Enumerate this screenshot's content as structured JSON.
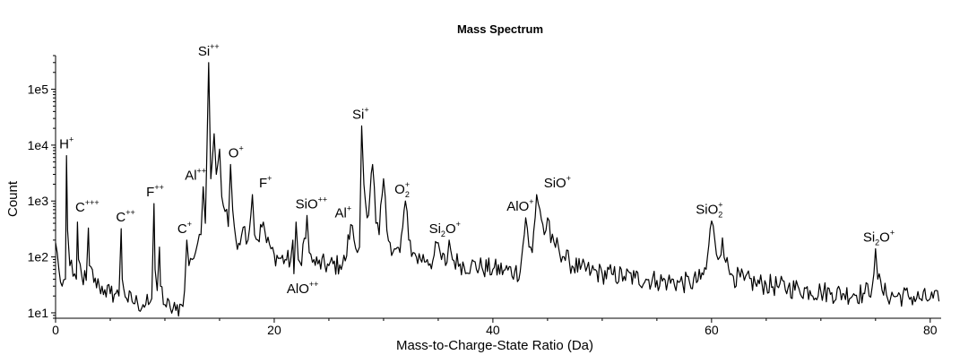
{
  "chart_data": {
    "type": "line",
    "title": "Mass Spectrum",
    "xlabel": "Mass-to-Charge-State Ratio (Da)",
    "ylabel": "Count",
    "xlim": [
      0,
      81
    ],
    "ylim": [
      8,
      400000
    ],
    "yscale": "log",
    "grid": false,
    "legend": "none",
    "line_color": "#000000",
    "x_ticks": [
      {
        "value": 0,
        "label": "0"
      },
      {
        "value": 20,
        "label": "20"
      },
      {
        "value": 40,
        "label": "40"
      },
      {
        "value": 60,
        "label": "60"
      },
      {
        "value": 80,
        "label": "80"
      }
    ],
    "y_ticks": [
      {
        "value": 10,
        "label": "1e1"
      },
      {
        "value": 100,
        "label": "1e2"
      },
      {
        "value": 1000,
        "label": "1e3"
      },
      {
        "value": 10000,
        "label": "1e4"
      },
      {
        "value": 100000,
        "label": "1e5"
      }
    ],
    "spectrum": [
      [
        0.0,
        180
      ],
      [
        0.3,
        60
      ],
      [
        0.6,
        30
      ],
      [
        0.9,
        40
      ],
      [
        1.0,
        6500
      ],
      [
        1.1,
        300
      ],
      [
        1.3,
        70
      ],
      [
        1.6,
        45
      ],
      [
        1.9,
        40
      ],
      [
        2.0,
        420
      ],
      [
        2.1,
        90
      ],
      [
        2.4,
        45
      ],
      [
        2.8,
        38
      ],
      [
        3.0,
        330
      ],
      [
        3.1,
        70
      ],
      [
        3.5,
        35
      ],
      [
        4.0,
        30
      ],
      [
        4.5,
        26
      ],
      [
        5.0,
        22
      ],
      [
        5.5,
        22
      ],
      [
        5.8,
        20
      ],
      [
        6.0,
        320
      ],
      [
        6.1,
        40
      ],
      [
        6.5,
        18
      ],
      [
        7.0,
        16
      ],
      [
        7.5,
        15
      ],
      [
        8.0,
        14
      ],
      [
        8.5,
        14
      ],
      [
        8.8,
        18
      ],
      [
        9.0,
        900
      ],
      [
        9.1,
        60
      ],
      [
        9.3,
        25
      ],
      [
        9.5,
        150
      ],
      [
        9.6,
        30
      ],
      [
        10.0,
        14
      ],
      [
        10.5,
        12
      ],
      [
        11.0,
        11
      ],
      [
        11.5,
        14
      ],
      [
        11.8,
        25
      ],
      [
        12.0,
        200
      ],
      [
        12.2,
        70
      ],
      [
        12.5,
        90
      ],
      [
        12.8,
        120
      ],
      [
        13.0,
        180
      ],
      [
        13.3,
        250
      ],
      [
        13.5,
        1800
      ],
      [
        13.7,
        400
      ],
      [
        14.0,
        300000
      ],
      [
        14.2,
        2500
      ],
      [
        14.5,
        16000
      ],
      [
        14.7,
        3000
      ],
      [
        15.0,
        8500
      ],
      [
        15.2,
        1200
      ],
      [
        15.5,
        650
      ],
      [
        15.8,
        350
      ],
      [
        16.0,
        4500
      ],
      [
        16.2,
        700
      ],
      [
        16.5,
        200
      ],
      [
        17.0,
        240
      ],
      [
        17.3,
        350
      ],
      [
        17.6,
        200
      ],
      [
        18.0,
        1300
      ],
      [
        18.2,
        250
      ],
      [
        18.5,
        200
      ],
      [
        19.0,
        420
      ],
      [
        19.3,
        180
      ],
      [
        19.7,
        140
      ],
      [
        20.0,
        110
      ],
      [
        20.5,
        95
      ],
      [
        21.0,
        90
      ],
      [
        21.5,
        85
      ],
      [
        21.7,
        200
      ],
      [
        21.8,
        50
      ],
      [
        22.0,
        420
      ],
      [
        22.2,
        90
      ],
      [
        22.5,
        70
      ],
      [
        23.0,
        550
      ],
      [
        23.2,
        120
      ],
      [
        23.5,
        80
      ],
      [
        24.0,
        75
      ],
      [
        25.0,
        70
      ],
      [
        26.0,
        72
      ],
      [
        26.5,
        85
      ],
      [
        27.0,
        380
      ],
      [
        27.3,
        200
      ],
      [
        27.6,
        120
      ],
      [
        27.8,
        150
      ],
      [
        28.0,
        22000
      ],
      [
        28.2,
        2000
      ],
      [
        28.5,
        500
      ],
      [
        29.0,
        4500
      ],
      [
        29.3,
        400
      ],
      [
        29.6,
        250
      ],
      [
        30.0,
        2500
      ],
      [
        30.3,
        300
      ],
      [
        30.6,
        180
      ],
      [
        31.0,
        140
      ],
      [
        31.5,
        120
      ],
      [
        32.0,
        1000
      ],
      [
        32.3,
        200
      ],
      [
        32.7,
        120
      ],
      [
        33.0,
        100
      ],
      [
        34.0,
        90
      ],
      [
        34.5,
        85
      ],
      [
        35.0,
        180
      ],
      [
        35.3,
        90
      ],
      [
        35.8,
        80
      ],
      [
        36.0,
        200
      ],
      [
        36.3,
        90
      ],
      [
        37.0,
        75
      ],
      [
        38.0,
        70
      ],
      [
        39.0,
        65
      ],
      [
        40.0,
        60
      ],
      [
        41.0,
        58
      ],
      [
        42.0,
        55
      ],
      [
        42.5,
        55
      ],
      [
        43.0,
        500
      ],
      [
        43.3,
        150
      ],
      [
        43.6,
        120
      ],
      [
        44.0,
        1300
      ],
      [
        44.3,
        700
      ],
      [
        44.7,
        250
      ],
      [
        45.0,
        500
      ],
      [
        45.3,
        180
      ],
      [
        46.0,
        150
      ],
      [
        46.5,
        100
      ],
      [
        47.0,
        80
      ],
      [
        48.0,
        60
      ],
      [
        49.0,
        55
      ],
      [
        50.0,
        50
      ],
      [
        51.0,
        48
      ],
      [
        52.0,
        45
      ],
      [
        53.0,
        42
      ],
      [
        54.0,
        40
      ],
      [
        55.0,
        38
      ],
      [
        56.0,
        36
      ],
      [
        57.0,
        35
      ],
      [
        58.0,
        34
      ],
      [
        59.0,
        40
      ],
      [
        59.5,
        60
      ],
      [
        60.0,
        440
      ],
      [
        60.3,
        200
      ],
      [
        60.6,
        90
      ],
      [
        61.0,
        220
      ],
      [
        61.3,
        80
      ],
      [
        61.8,
        50
      ],
      [
        62.0,
        45
      ],
      [
        63.0,
        38
      ],
      [
        64.0,
        34
      ],
      [
        65.0,
        32
      ],
      [
        66.0,
        30
      ],
      [
        67.0,
        28
      ],
      [
        68.0,
        27
      ],
      [
        69.0,
        25
      ],
      [
        70.0,
        24
      ],
      [
        71.0,
        23
      ],
      [
        72.0,
        22
      ],
      [
        73.0,
        22
      ],
      [
        74.0,
        22
      ],
      [
        74.7,
        30
      ],
      [
        75.0,
        140
      ],
      [
        75.2,
        40
      ],
      [
        75.6,
        25
      ],
      [
        76.0,
        21
      ],
      [
        77.0,
        20
      ],
      [
        78.0,
        20
      ],
      [
        79.0,
        18
      ],
      [
        80.0,
        18
      ],
      [
        80.8,
        16
      ]
    ],
    "annotations": [
      {
        "id": "h-plus",
        "base": "H",
        "sup": "+",
        "sub": "",
        "x": 1.0,
        "y": 6500
      },
      {
        "id": "c-3plus",
        "base": "C",
        "sup": "+++",
        "sub": "",
        "x": 2.9,
        "y": 480
      },
      {
        "id": "c-2plus",
        "base": "C",
        "sup": "++",
        "sub": "",
        "x": 6.4,
        "y": 320
      },
      {
        "id": "f-2plus",
        "base": "F",
        "sup": "++",
        "sub": "",
        "x": 9.1,
        "y": 900
      },
      {
        "id": "c-plus",
        "base": "C",
        "sup": "+",
        "sub": "",
        "x": 11.8,
        "y": 200
      },
      {
        "id": "al-2plus",
        "base": "Al",
        "sup": "++",
        "sub": "",
        "x": 12.8,
        "y": 1800
      },
      {
        "id": "si-2plus",
        "base": "Si",
        "sup": "++",
        "sub": "",
        "x": 14.0,
        "y": 300000
      },
      {
        "id": "o-plus",
        "base": "O",
        "sup": "+",
        "sub": "",
        "x": 16.5,
        "y": 4500
      },
      {
        "id": "f-plus",
        "base": "F",
        "sup": "+",
        "sub": "",
        "x": 19.2,
        "y": 1300
      },
      {
        "id": "sio-2plus",
        "base": "SiO",
        "sup": "++",
        "sub": "",
        "x": 23.4,
        "y": 550
      },
      {
        "id": "alo-2plus",
        "base": "AlO",
        "sup": "++",
        "sub": "",
        "x": 22.6,
        "y": 30
      },
      {
        "id": "al-plus",
        "base": "Al",
        "sup": "+",
        "sub": "",
        "x": 26.3,
        "y": 380
      },
      {
        "id": "si-plus",
        "base": "Si",
        "sup": "+",
        "sub": "",
        "x": 27.9,
        "y": 22000
      },
      {
        "id": "o2-plus",
        "base": "O",
        "sup": "+",
        "sub": "2",
        "x": 31.7,
        "y": 1000
      },
      {
        "id": "si2o-2plus",
        "base": "Si",
        "sup": "+",
        "sub": "2",
        "tail": "O",
        "x": 35.6,
        "y": 200
      },
      {
        "id": "alo-plus",
        "base": "AlO",
        "sup": "+",
        "sub": "",
        "x": 42.5,
        "y": 500
      },
      {
        "id": "sio-plus",
        "base": "SiO",
        "sup": "+",
        "sub": "",
        "x": 45.9,
        "y": 1300
      },
      {
        "id": "sio2-plus",
        "base": "SiO",
        "sup": "+",
        "sub": "2",
        "x": 59.8,
        "y": 440
      },
      {
        "id": "si2o-plus",
        "base": "Si",
        "sup": "+",
        "sub": "2",
        "tail": "O",
        "x": 75.3,
        "y": 140
      }
    ]
  }
}
